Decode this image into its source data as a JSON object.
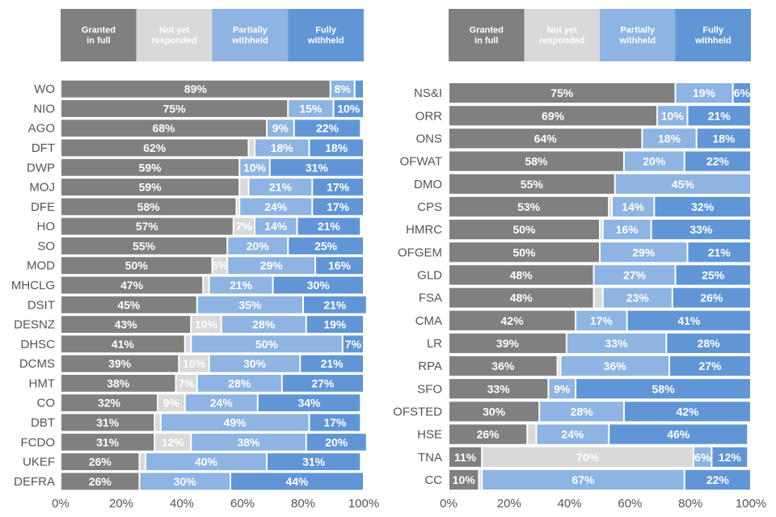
{
  "colors": {
    "granted_in_full": "#808080",
    "not_yet_responded": "#d9d9d9",
    "partially_withheld": "#8db4e2",
    "fully_withheld": "#6196d6"
  },
  "chart_data": [
    {
      "type": "bar",
      "orientation": "horizontal",
      "stacked": true,
      "xlim": [
        0,
        100
      ],
      "x_ticks": [
        "0%",
        "20%",
        "40%",
        "60%",
        "80%",
        "100%"
      ],
      "legend": [
        "Granted in full",
        "Not yet responded",
        "Partially withheld",
        "Fully withheld"
      ],
      "categories": [
        "WO",
        "NIO",
        "AGO",
        "DFT",
        "DWP",
        "MOJ",
        "DFE",
        "HO",
        "SO",
        "MOD",
        "MHCLG",
        "DSIT",
        "DESNZ",
        "DHSC",
        "DCMS",
        "HMT",
        "CO",
        "DBT",
        "FCDO",
        "UKEF",
        "DEFRA"
      ],
      "series": [
        {
          "name": "Granted in full",
          "values": [
            89,
            75,
            68,
            62,
            59,
            59,
            58,
            57,
            55,
            50,
            47,
            45,
            43,
            41,
            39,
            38,
            32,
            31,
            31,
            26,
            26
          ]
        },
        {
          "name": "Not yet responded",
          "values": [
            0,
            0,
            0,
            2,
            0,
            3,
            1,
            7,
            0,
            5,
            2,
            0,
            10,
            2,
            10,
            7,
            9,
            2,
            12,
            2,
            0
          ]
        },
        {
          "name": "Partially withheld",
          "values": [
            8,
            15,
            9,
            18,
            10,
            21,
            24,
            14,
            20,
            29,
            21,
            35,
            28,
            50,
            30,
            28,
            24,
            49,
            38,
            40,
            30
          ]
        },
        {
          "name": "Fully withheld",
          "values": [
            3,
            10,
            22,
            18,
            31,
            17,
            17,
            21,
            25,
            16,
            30,
            21,
            19,
            7,
            21,
            27,
            34,
            17,
            20,
            31,
            44
          ]
        }
      ],
      "labels": [
        [
          "89%",
          "",
          "8%",
          ""
        ],
        [
          "75%",
          "",
          "15%",
          "10%"
        ],
        [
          "68%",
          "",
          "9%",
          "22%"
        ],
        [
          "62%",
          "",
          "18%",
          "18%"
        ],
        [
          "59%",
          "",
          "10%",
          "31%"
        ],
        [
          "59%",
          "",
          "21%",
          "17%"
        ],
        [
          "58%",
          "",
          "24%",
          "17%"
        ],
        [
          "57%",
          "7%",
          "14%",
          "21%"
        ],
        [
          "55%",
          "",
          "20%",
          "25%"
        ],
        [
          "50%",
          "5%",
          "29%",
          "16%"
        ],
        [
          "47%",
          "",
          "21%",
          "30%"
        ],
        [
          "45%",
          "",
          "35%",
          "21%"
        ],
        [
          "43%",
          "10%",
          "28%",
          "19%"
        ],
        [
          "41%",
          "",
          "50%",
          "7%"
        ],
        [
          "39%",
          "10%",
          "30%",
          "21%"
        ],
        [
          "38%",
          "7%",
          "28%",
          "27%"
        ],
        [
          "32%",
          "9%",
          "24%",
          "34%"
        ],
        [
          "31%",
          "",
          "49%",
          "17%"
        ],
        [
          "31%",
          "12%",
          "38%",
          "20%"
        ],
        [
          "26%",
          "",
          "40%",
          "31%"
        ],
        [
          "26%",
          "",
          "30%",
          "44%"
        ]
      ]
    },
    {
      "type": "bar",
      "orientation": "horizontal",
      "stacked": true,
      "xlim": [
        0,
        100
      ],
      "x_ticks": [
        "0%",
        "20%",
        "40%",
        "60%",
        "80%",
        "100%"
      ],
      "legend": [
        "Granted in full",
        "Not yet responded",
        "Partially withheld",
        "Fully withheld"
      ],
      "categories": [
        "NS&I",
        "ORR",
        "ONS",
        "OFWAT",
        "DMO",
        "CPS",
        "HMRC",
        "OFGEM",
        "GLD",
        "FSA",
        "CMA",
        "LR",
        "RPA",
        "SFO",
        "OFSTED",
        "HSE",
        "TNA",
        "CC"
      ],
      "series": [
        {
          "name": "Granted in full",
          "values": [
            75,
            69,
            64,
            58,
            55,
            53,
            50,
            50,
            48,
            48,
            42,
            39,
            36,
            33,
            30,
            26,
            11,
            10
          ]
        },
        {
          "name": "Not yet responded",
          "values": [
            0,
            0,
            0,
            0,
            0,
            1,
            1,
            0,
            0,
            3,
            0,
            0,
            1,
            0,
            0,
            3,
            70,
            1
          ]
        },
        {
          "name": "Partially withheld",
          "values": [
            19,
            10,
            18,
            20,
            45,
            14,
            16,
            29,
            27,
            23,
            17,
            33,
            36,
            9,
            28,
            24,
            6,
            67
          ]
        },
        {
          "name": "Fully withheld",
          "values": [
            6,
            21,
            18,
            22,
            0,
            32,
            33,
            21,
            25,
            26,
            41,
            28,
            27,
            58,
            42,
            46,
            12,
            22
          ]
        }
      ],
      "labels": [
        [
          "75%",
          "",
          "19%",
          "6%"
        ],
        [
          "69%",
          "",
          "10%",
          "21%"
        ],
        [
          "64%",
          "",
          "18%",
          "18%"
        ],
        [
          "58%",
          "",
          "20%",
          "22%"
        ],
        [
          "55%",
          "",
          "45%",
          ""
        ],
        [
          "53%",
          "",
          "14%",
          "32%"
        ],
        [
          "50%",
          "",
          "16%",
          "33%"
        ],
        [
          "50%",
          "",
          "29%",
          "21%"
        ],
        [
          "48%",
          "",
          "27%",
          "25%"
        ],
        [
          "48%",
          "",
          "23%",
          "26%"
        ],
        [
          "42%",
          "",
          "17%",
          "41%"
        ],
        [
          "39%",
          "",
          "33%",
          "28%"
        ],
        [
          "36%",
          "",
          "36%",
          "27%"
        ],
        [
          "33%",
          "",
          "9%",
          "58%"
        ],
        [
          "30%",
          "",
          "28%",
          "42%"
        ],
        [
          "26%",
          "",
          "24%",
          "46%"
        ],
        [
          "11%",
          "70%",
          "6%",
          "12%"
        ],
        [
          "10%",
          "",
          "67%",
          "22%"
        ]
      ]
    }
  ]
}
